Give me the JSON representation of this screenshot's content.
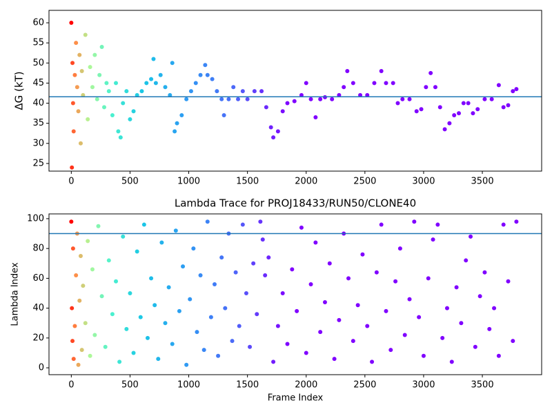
{
  "chart_data": [
    {
      "type": "scatter",
      "ylabel": "ΔG (kT)",
      "xlim": [
        -190,
        4005
      ],
      "ylim": [
        23.1,
        63.1
      ],
      "xticks": [
        0,
        500,
        1000,
        1500,
        2000,
        2500,
        3000,
        3500
      ],
      "yticks": [
        25,
        30,
        35,
        40,
        45,
        50,
        55,
        60
      ],
      "hline": 41.6,
      "hline_color": "#1f77b4",
      "colormap": [
        "#ff0000",
        "#ff8c47",
        "#b2f896",
        "#4cf2ce",
        "#1ac7e6",
        "#2c9ef2",
        "#4a6cf8",
        "#8000ff",
        "#8000ff",
        "#8000ff",
        "#8000ff"
      ],
      "x": [
        0,
        5,
        10,
        15,
        20,
        30,
        40,
        50,
        60,
        70,
        80,
        90,
        100,
        120,
        140,
        160,
        180,
        200,
        220,
        240,
        260,
        280,
        300,
        320,
        350,
        380,
        400,
        420,
        440,
        470,
        500,
        530,
        560,
        600,
        640,
        680,
        700,
        720,
        760,
        800,
        840,
        860,
        880,
        900,
        940,
        980,
        1020,
        1060,
        1100,
        1140,
        1160,
        1200,
        1240,
        1280,
        1300,
        1340,
        1380,
        1420,
        1460,
        1500,
        1560,
        1620,
        1660,
        1700,
        1720,
        1760,
        1800,
        1840,
        1900,
        1960,
        2000,
        2040,
        2080,
        2120,
        2160,
        2220,
        2280,
        2320,
        2350,
        2400,
        2460,
        2520,
        2580,
        2640,
        2680,
        2740,
        2780,
        2820,
        2880,
        2940,
        2980,
        3020,
        3060,
        3100,
        3140,
        3180,
        3220,
        3260,
        3300,
        3340,
        3380,
        3420,
        3460,
        3520,
        3580,
        3640,
        3680,
        3720,
        3760,
        3790
      ],
      "values": [
        60,
        24,
        50,
        40,
        33,
        47,
        55,
        44,
        38,
        52,
        30,
        48,
        42,
        57,
        36,
        49,
        44,
        52,
        41,
        47,
        54,
        39,
        45,
        43,
        37,
        45,
        33,
        31.5,
        40,
        43,
        36,
        38,
        42,
        43,
        45,
        46,
        51,
        45,
        47,
        44,
        42,
        50,
        33,
        35,
        37,
        41,
        43,
        45,
        47,
        49.5,
        47,
        46,
        43,
        41,
        37,
        41,
        44,
        41,
        43,
        41,
        43,
        43,
        39,
        34,
        31.5,
        33,
        38,
        40,
        40.5,
        42,
        45,
        41,
        36.5,
        41,
        41.5,
        41,
        42,
        44,
        48,
        45,
        42,
        42,
        45,
        48,
        45,
        45,
        40,
        41,
        41,
        38,
        38.5,
        44,
        47.5,
        44,
        39,
        33.5,
        35,
        37,
        37.5,
        40,
        40,
        37.5,
        38.5,
        41,
        41,
        44.5,
        39,
        39.5,
        43,
        43.5
      ]
    },
    {
      "type": "scatter",
      "title": "Lambda Trace for PROJ18433/RUN50/CLONE40",
      "xlabel": "Frame Index",
      "ylabel": "Lambda Index",
      "xlim": [
        -190,
        4005
      ],
      "ylim": [
        -4.6,
        103.2
      ],
      "xticks": [
        0,
        500,
        1000,
        1500,
        2000,
        2500,
        3000,
        3500
      ],
      "yticks": [
        0,
        20,
        40,
        60,
        80,
        100
      ],
      "hline": 90,
      "hline_color": "#1f77b4",
      "colormap": [
        "#ff0000",
        "#ff8c47",
        "#b2f896",
        "#4cf2ce",
        "#1ac7e6",
        "#2c9ef2",
        "#4a6cf8",
        "#8000ff",
        "#8000ff",
        "#8000ff",
        "#8000ff"
      ],
      "x": [
        0,
        5,
        10,
        15,
        20,
        30,
        40,
        50,
        60,
        70,
        80,
        90,
        100,
        120,
        140,
        160,
        180,
        200,
        230,
        260,
        290,
        320,
        350,
        380,
        410,
        440,
        470,
        500,
        530,
        560,
        590,
        620,
        650,
        680,
        710,
        740,
        770,
        800,
        830,
        860,
        890,
        920,
        950,
        980,
        1010,
        1040,
        1070,
        1100,
        1130,
        1160,
        1190,
        1220,
        1250,
        1280,
        1310,
        1340,
        1370,
        1400,
        1430,
        1460,
        1490,
        1520,
        1550,
        1580,
        1610,
        1630,
        1650,
        1680,
        1720,
        1760,
        1800,
        1840,
        1880,
        1920,
        1960,
        2000,
        2040,
        2080,
        2120,
        2160,
        2200,
        2240,
        2280,
        2320,
        2360,
        2400,
        2440,
        2480,
        2520,
        2560,
        2600,
        2640,
        2680,
        2720,
        2760,
        2800,
        2840,
        2880,
        2920,
        2960,
        3000,
        3040,
        3080,
        3120,
        3160,
        3200,
        3240,
        3280,
        3320,
        3360,
        3400,
        3440,
        3480,
        3520,
        3560,
        3600,
        3640,
        3680,
        3720,
        3760,
        3790
      ],
      "values": [
        98,
        40,
        18,
        80,
        6,
        28,
        62,
        90,
        2,
        45,
        75,
        12,
        55,
        30,
        85,
        8,
        66,
        22,
        95,
        48,
        14,
        72,
        36,
        58,
        4,
        88,
        26,
        50,
        10,
        78,
        34,
        96,
        20,
        60,
        42,
        6,
        84,
        30,
        54,
        16,
        92,
        38,
        68,
        2,
        46,
        80,
        24,
        62,
        12,
        98,
        34,
        56,
        8,
        74,
        40,
        90,
        18,
        64,
        28,
        96,
        50,
        14,
        70,
        36,
        98,
        86,
        62,
        74,
        4,
        28,
        50,
        16,
        66,
        38,
        94,
        10,
        56,
        84,
        24,
        44,
        70,
        6,
        32,
        90,
        60,
        18,
        42,
        76,
        28,
        4,
        64,
        96,
        38,
        12,
        58,
        80,
        22,
        46,
        98,
        34,
        8,
        60,
        86,
        96,
        20,
        40,
        4,
        54,
        30,
        72,
        88,
        14,
        48,
        64,
        26,
        40,
        8,
        96,
        58,
        18,
        98
      ]
    }
  ]
}
